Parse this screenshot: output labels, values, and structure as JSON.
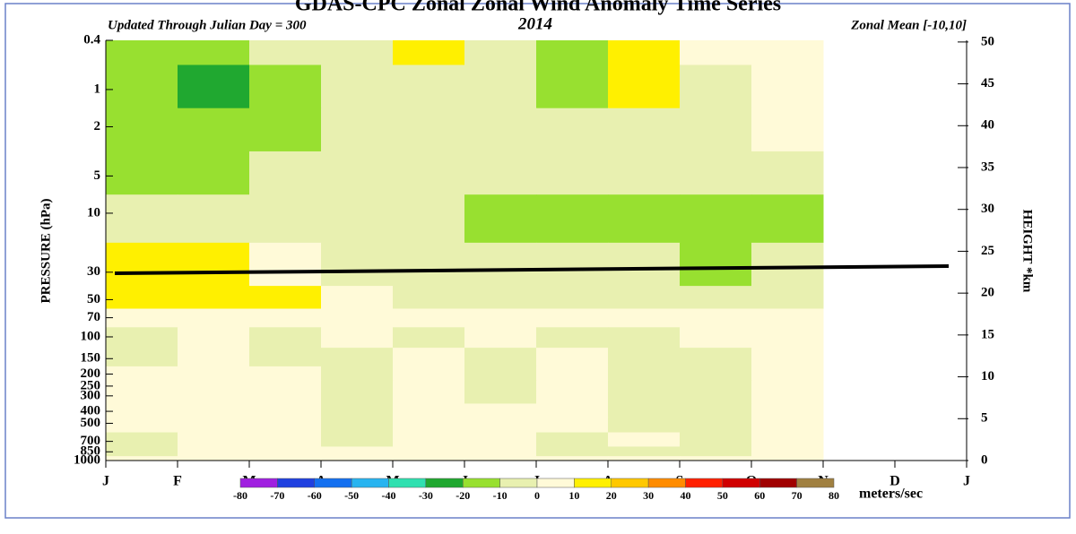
{
  "chart_data": {
    "type": "contour",
    "title": "GDAS-CPC Zonal Zonal Wind Anomaly Time Series",
    "subtitle_left": "Updated Through Julian Day = 300",
    "subtitle_center": "2014",
    "subtitle_right": "Zonal Mean [-10,10]",
    "ylabel": "PRESSURE (hPa)",
    "y2label": "HEIGHT *km",
    "xlim": [
      0,
      12
    ],
    "xticks": [
      {
        "value": 0,
        "label": "J"
      },
      {
        "value": 1,
        "label": "F"
      },
      {
        "value": 2,
        "label": "M"
      },
      {
        "value": 3,
        "label": "A"
      },
      {
        "value": 4,
        "label": "M"
      },
      {
        "value": 5,
        "label": "J"
      },
      {
        "value": 6,
        "label": "J"
      },
      {
        "value": 7,
        "label": "A"
      },
      {
        "value": 8,
        "label": "S"
      },
      {
        "value": 9,
        "label": "O"
      },
      {
        "value": 10,
        "label": "N"
      },
      {
        "value": 11,
        "label": "D"
      },
      {
        "value": 12,
        "label": "J"
      }
    ],
    "ylim": [
      1000,
      0.4
    ],
    "ylog": true,
    "yticks": [
      0.4,
      1,
      2,
      5,
      10,
      30,
      50,
      70,
      100,
      150,
      200,
      250,
      300,
      400,
      500,
      700,
      850,
      1000
    ],
    "y2lim": [
      0,
      50.2
    ],
    "y2ticks": [
      0,
      5,
      10,
      15,
      20,
      25,
      30,
      35,
      40,
      45,
      50
    ],
    "x": [
      0.5,
      1.5,
      2.5,
      3.5,
      4.5,
      5.5,
      6.5,
      7.5,
      8.5,
      9.5
    ],
    "y": [
      0.4,
      1,
      2,
      5,
      10,
      30,
      50,
      70,
      100,
      150,
      200,
      250,
      300,
      400,
      500,
      700,
      850,
      1000
    ],
    "z": [
      [
        -20,
        -20,
        -10,
        -10,
        10,
        -5,
        -20,
        10,
        5,
        5
      ],
      [
        -20,
        -30,
        -20,
        -10,
        -5,
        -5,
        -20,
        10,
        -5,
        5
      ],
      [
        -20,
        -20,
        -20,
        -10,
        -5,
        -5,
        -10,
        -5,
        -5,
        5
      ],
      [
        -20,
        -20,
        -10,
        -10,
        -10,
        -10,
        -10,
        -10,
        -10,
        -5
      ],
      [
        -10,
        -10,
        -10,
        -10,
        -10,
        -20,
        -20,
        -20,
        -20,
        -20
      ],
      [
        10,
        10,
        5,
        -5,
        -10,
        -10,
        -10,
        -10,
        -20,
        -10
      ],
      [
        10,
        10,
        10,
        5,
        -5,
        -5,
        -5,
        -5,
        -5,
        -5
      ],
      [
        5,
        5,
        5,
        5,
        5,
        5,
        5,
        5,
        5,
        5
      ],
      [
        -5,
        5,
        -5,
        5,
        -5,
        5,
        -5,
        -5,
        5,
        5
      ],
      [
        -5,
        5,
        -5,
        -5,
        5,
        -5,
        5,
        -5,
        -5,
        5
      ],
      [
        5,
        5,
        5,
        -5,
        5,
        -5,
        5,
        -5,
        -5,
        5
      ],
      [
        5,
        5,
        5,
        -5,
        5,
        -5,
        5,
        -5,
        -5,
        5
      ],
      [
        5,
        5,
        5,
        -5,
        5,
        -5,
        5,
        -5,
        -5,
        5
      ],
      [
        5,
        5,
        5,
        -5,
        5,
        5,
        5,
        -5,
        -5,
        5
      ],
      [
        5,
        5,
        5,
        -5,
        5,
        5,
        5,
        -5,
        -5,
        5
      ],
      [
        -5,
        5,
        5,
        -5,
        5,
        5,
        -5,
        5,
        -5,
        5
      ],
      [
        -5,
        5,
        5,
        5,
        5,
        5,
        -5,
        -5,
        -5,
        5
      ],
      [
        5,
        5,
        5,
        5,
        5,
        5,
        5,
        5,
        5,
        5
      ]
    ],
    "colorbar": {
      "levels": [
        -80,
        -70,
        -60,
        -50,
        -40,
        -30,
        -20,
        -10,
        0,
        10,
        20,
        30,
        40,
        50,
        60,
        70,
        80
      ],
      "colors": [
        "#a020e0",
        "#2040e0",
        "#1470f0",
        "#28b4f0",
        "#30e0b0",
        "#20a830",
        "#98e030",
        "#e8f0b0",
        "#fffad8",
        "#fff000",
        "#ffc800",
        "#ff8c00",
        "#ff2000",
        "#d00000",
        "#a00000",
        "#a08040"
      ],
      "label": "meters/sec"
    }
  }
}
